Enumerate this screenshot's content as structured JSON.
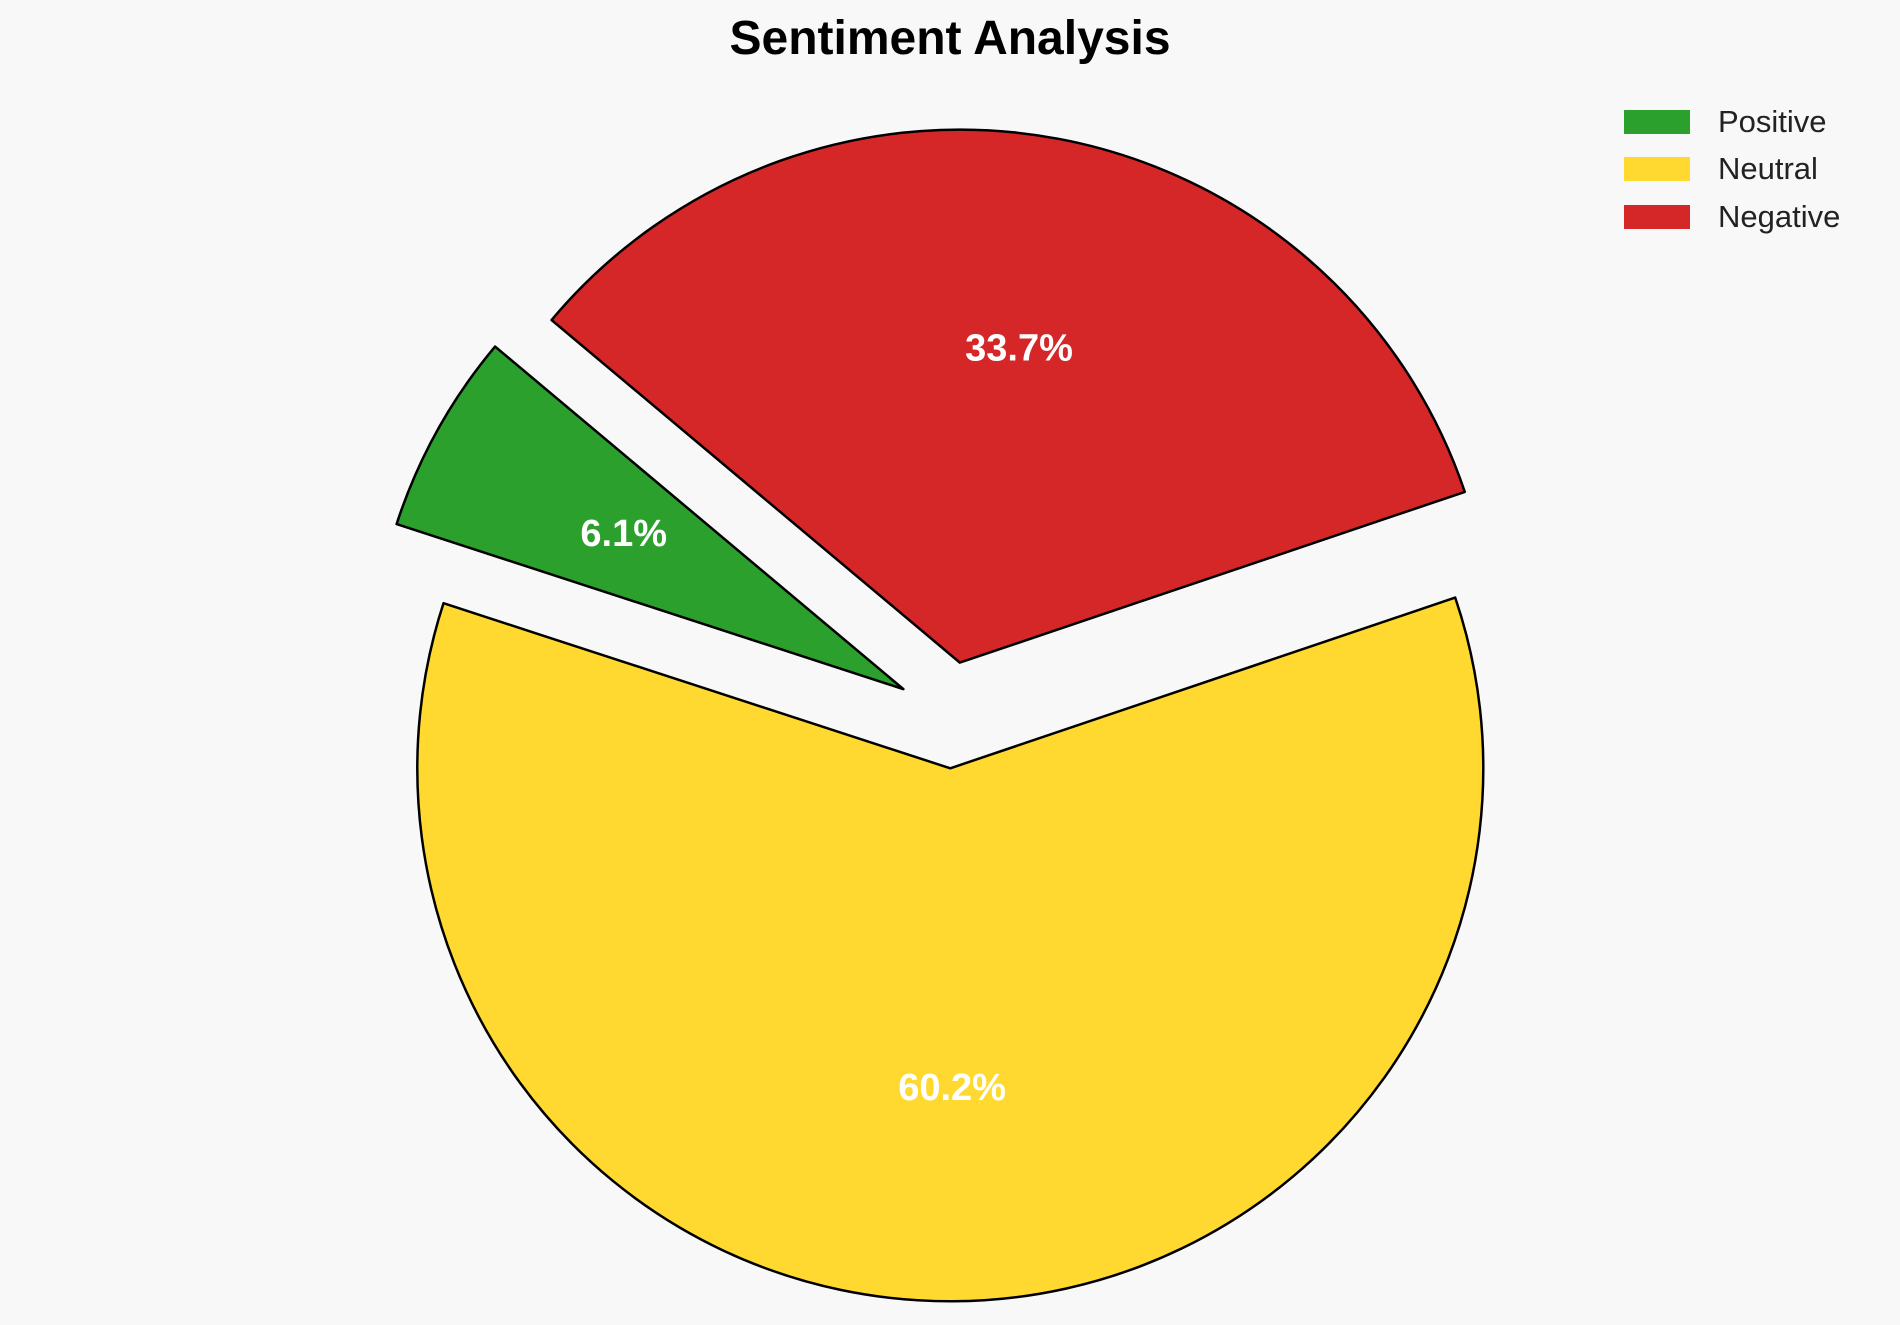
{
  "chart_data": {
    "type": "pie",
    "title": "Sentiment Analysis",
    "slices": [
      {
        "name": "Positive",
        "value": 6.1,
        "label": "6.1%",
        "color": "#2ca02c",
        "exploded": true
      },
      {
        "name": "Neutral",
        "value": 60.2,
        "label": "60.2%",
        "color": "#ffd92f",
        "exploded": true
      },
      {
        "name": "Negative",
        "value": 33.7,
        "label": "33.7%",
        "color": "#d62728",
        "exploded": true
      }
    ],
    "start_angle_deg": 140,
    "direction": "counterclockwise",
    "edge_color": "#000000",
    "legend_position": "top-right"
  }
}
